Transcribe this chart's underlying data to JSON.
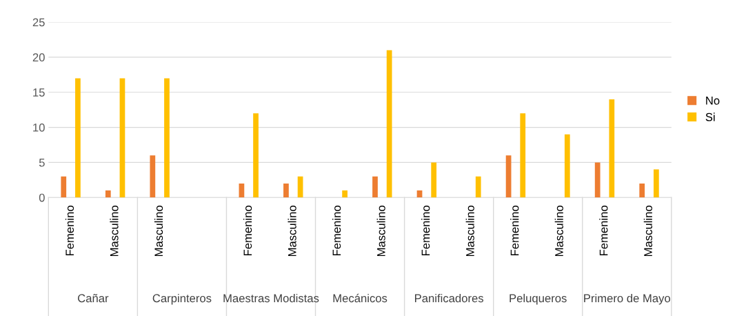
{
  "chart_data": {
    "type": "bar",
    "categories": [
      "Femenino",
      "Masculino",
      "Masculino",
      null,
      "Femenino",
      "Masculino",
      "Femenino",
      "Masculino",
      "Femenino",
      "Masculino",
      "Femenino",
      "Masculino",
      "Femenino",
      "Masculino"
    ],
    "series": [
      {
        "name": "No",
        "color": "#ed7d31",
        "values": [
          3,
          1,
          6,
          null,
          2,
          2,
          null,
          3,
          1,
          null,
          6,
          null,
          5,
          2
        ]
      },
      {
        "name": "Si",
        "color": "#ffc000",
        "values": [
          17,
          17,
          17,
          null,
          12,
          3,
          1,
          21,
          5,
          3,
          12,
          9,
          14,
          4
        ]
      }
    ],
    "annotations": [
      "Cañar",
      "Carpinteros",
      "Maestras Modistas",
      "Mecánicos",
      "Panificadores",
      "Peluqueros",
      "Primero de Mayo"
    ],
    "ylim": [
      0,
      25
    ],
    "yticks": [
      0,
      5,
      10,
      15,
      20,
      25
    ],
    "grid": "y",
    "legend": "right"
  }
}
